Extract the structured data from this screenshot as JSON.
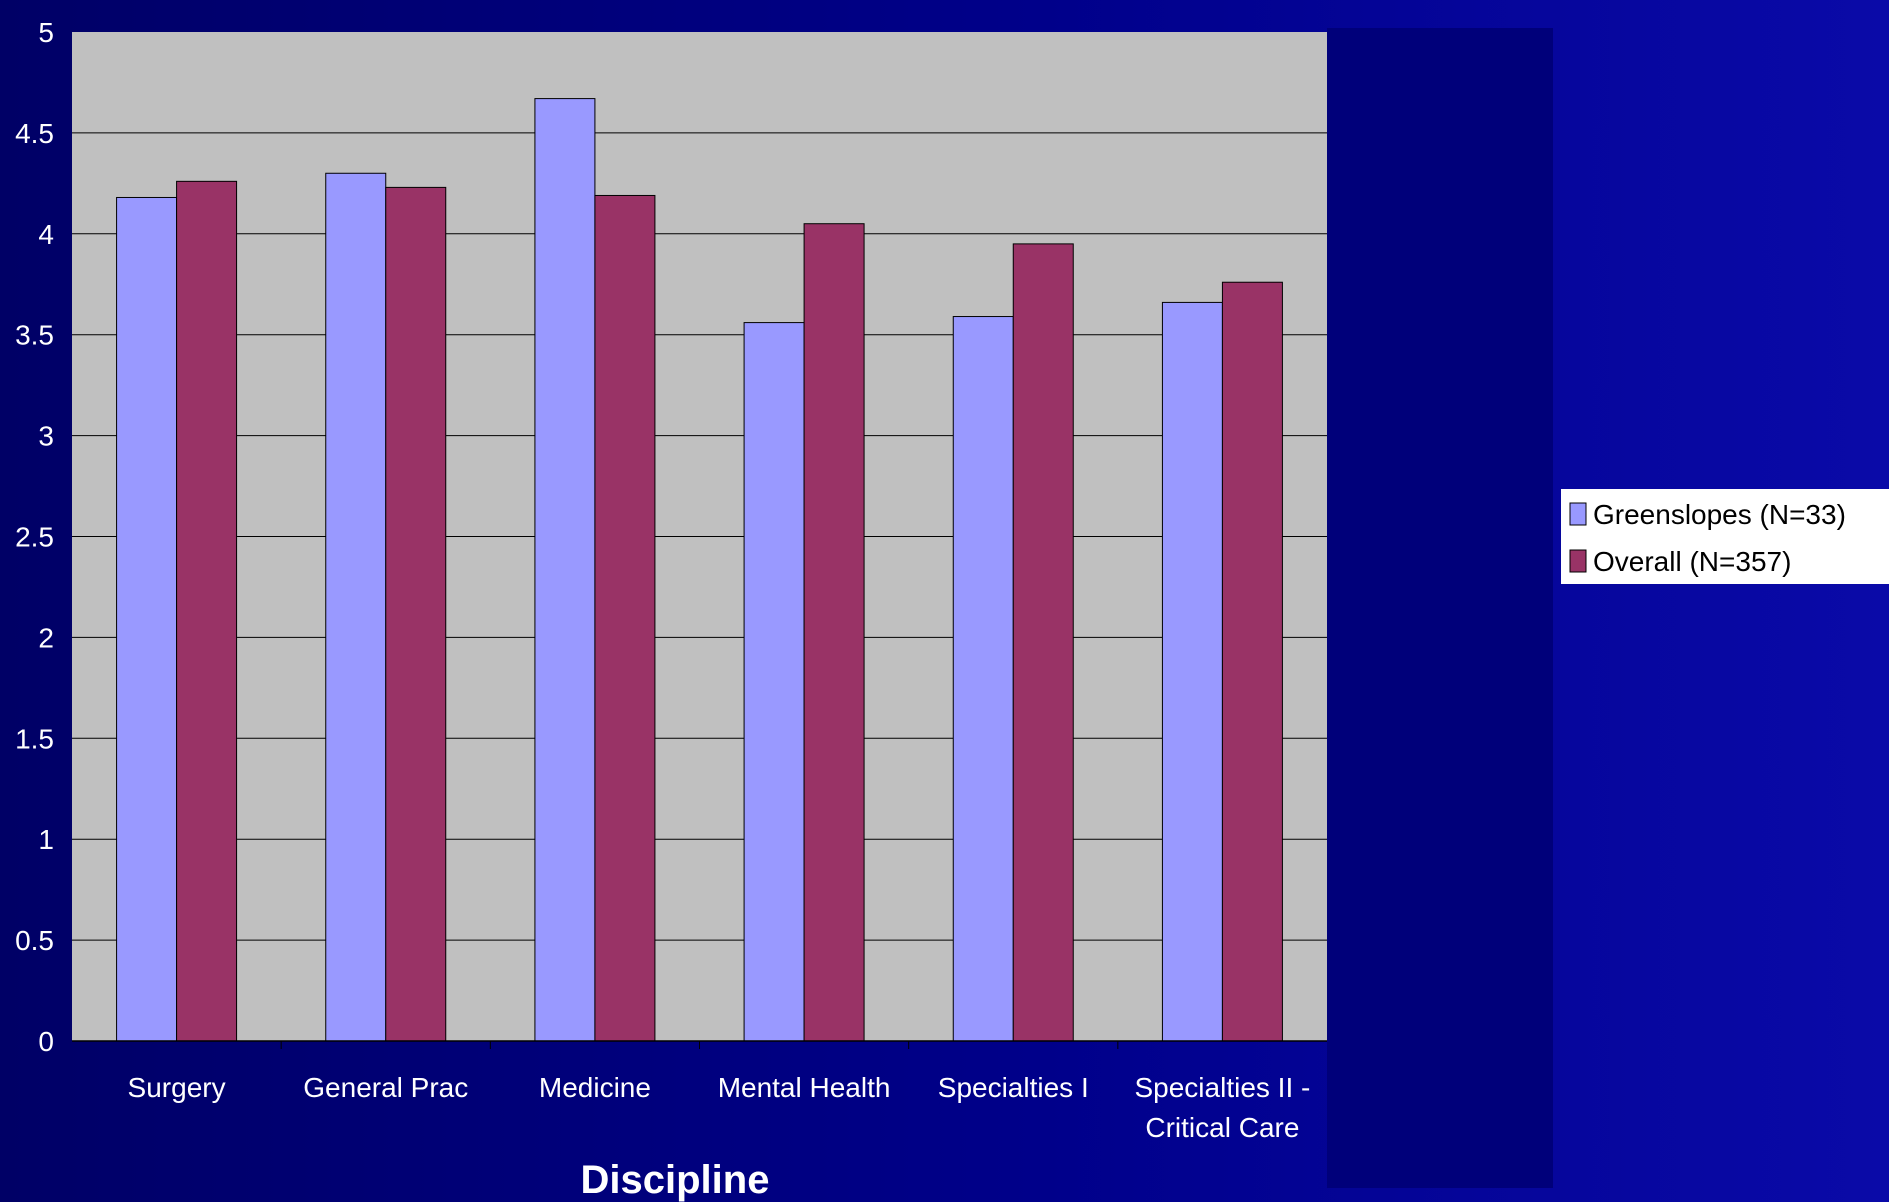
{
  "chart_data": {
    "type": "bar",
    "categories": [
      "Surgery",
      "General Prac",
      "Medicine",
      "Mental Health",
      "Specialties I",
      "Specialties II - Critical Care"
    ],
    "category_lines": [
      [
        "Surgery"
      ],
      [
        "General Prac"
      ],
      [
        "Medicine"
      ],
      [
        "Mental Health"
      ],
      [
        "Specialties I"
      ],
      [
        "Specialties II -",
        "Critical Care"
      ]
    ],
    "series": [
      {
        "name": "Greenslopes (N=33)",
        "values": [
          4.18,
          4.3,
          4.67,
          3.56,
          3.59,
          3.66
        ],
        "color": "#9999ff"
      },
      {
        "name": "Overall (N=357)",
        "values": [
          4.26,
          4.23,
          4.19,
          4.05,
          3.95,
          3.76
        ],
        "color": "#993366"
      }
    ],
    "xlabel": "Discipline",
    "ylabel": "",
    "ylim": [
      0,
      5
    ],
    "yticks": [
      "0",
      "0.5",
      "1",
      "1.5",
      "2",
      "2.5",
      "3",
      "3.5",
      "4",
      "4.5",
      "5"
    ],
    "grid": true,
    "legend_position": "right",
    "plot_background": "#c0c0c0"
  }
}
